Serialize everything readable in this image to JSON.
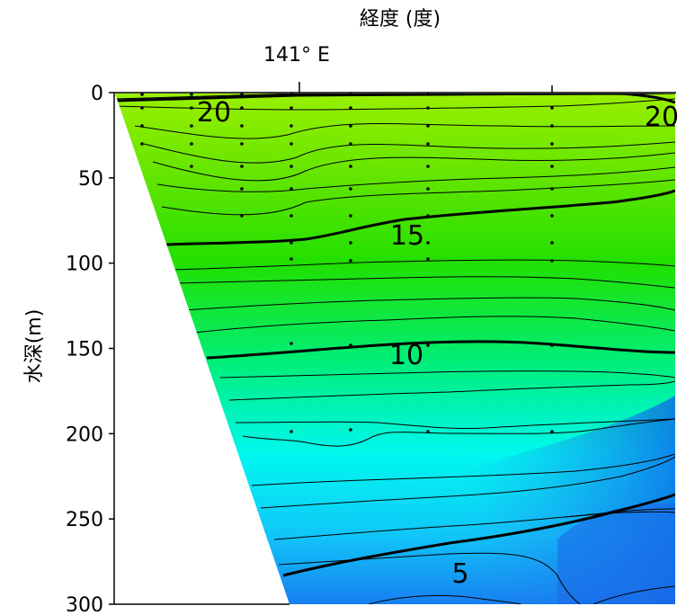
{
  "chart_data": {
    "type": "heatmap",
    "title": "経度 (度)",
    "top_axis_label": "141° E",
    "ylabel": "水深(m)",
    "ylim": [
      0,
      300
    ],
    "y_inverted": true,
    "y_ticks": [
      0,
      50,
      100,
      150,
      200,
      250,
      300
    ],
    "top_tick_labels": [
      "141° E"
    ],
    "colorscale": [
      {
        "value": 22,
        "color": "#9cf000"
      },
      {
        "value": 15,
        "color": "#22e000"
      },
      {
        "value": 10,
        "color": "#00f070"
      },
      {
        "value": 7,
        "color": "#00f8f0"
      },
      {
        "value": 5,
        "color": "#10c8f8"
      },
      {
        "value": 3,
        "color": "#1878f0"
      }
    ],
    "contour_labels": [
      {
        "text": "20",
        "value": 20
      },
      {
        "text": "20",
        "value": 20
      },
      {
        "text": "15",
        "value": 15
      },
      {
        "text": "10",
        "value": 10
      },
      {
        "text": "5",
        "value": 5
      }
    ],
    "bold_contours": [
      20,
      15,
      10,
      5
    ],
    "contour_interval": 1
  }
}
